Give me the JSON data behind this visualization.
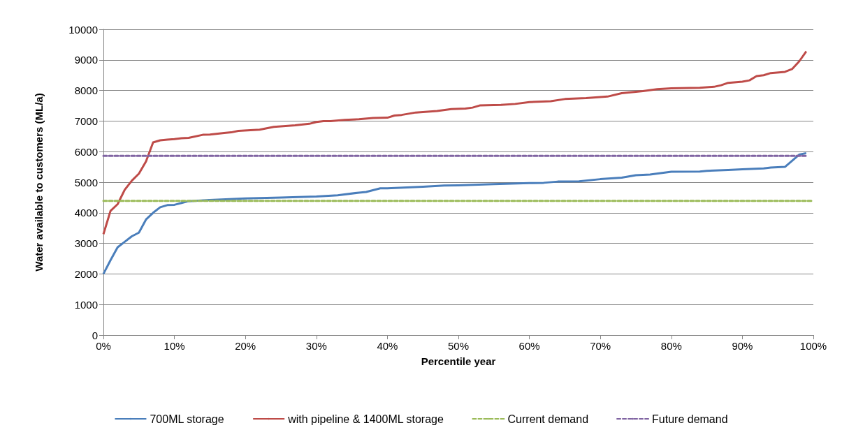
{
  "chart_data": {
    "type": "line",
    "xlabel": "Percentile year",
    "ylabel": "Water available to customers (ML/a)",
    "xlim": [
      0,
      100
    ],
    "xticks": [
      {
        "value": 0,
        "label": "0%"
      },
      {
        "value": 10,
        "label": "10%"
      },
      {
        "value": 20,
        "label": "20%"
      },
      {
        "value": 30,
        "label": "30%"
      },
      {
        "value": 40,
        "label": "40%"
      },
      {
        "value": 50,
        "label": "50%"
      },
      {
        "value": 60,
        "label": "60%"
      },
      {
        "value": 70,
        "label": "70%"
      },
      {
        "value": 80,
        "label": "80%"
      },
      {
        "value": 90,
        "label": "90%"
      },
      {
        "value": 100,
        "label": "100%"
      }
    ],
    "ylim": [
      0,
      10000
    ],
    "yticks": [
      0,
      1000,
      2000,
      3000,
      4000,
      5000,
      6000,
      7000,
      8000,
      9000,
      10000
    ],
    "grid": "y",
    "legend": "bottom",
    "marker": "none",
    "series": [
      {
        "name": "700ML storage",
        "color": "#4a7ebb",
        "line_style": "solid",
        "x": [
          0,
          1,
          2,
          3,
          4,
          5,
          6,
          7,
          8,
          9,
          10,
          11,
          12,
          15,
          20,
          25,
          30,
          33,
          36,
          37,
          39,
          40,
          45,
          48,
          50,
          55,
          60,
          62,
          64,
          67,
          70,
          73,
          75,
          77,
          80,
          84,
          85,
          88,
          90,
          93,
          94,
          96,
          98,
          99
        ],
        "values": [
          2000,
          2450,
          2870,
          3050,
          3230,
          3350,
          3780,
          4000,
          4180,
          4250,
          4260,
          4320,
          4380,
          4420,
          4470,
          4500,
          4530,
          4570,
          4660,
          4680,
          4800,
          4800,
          4850,
          4890,
          4900,
          4940,
          4970,
          4980,
          5020,
          5030,
          5100,
          5150,
          5230,
          5250,
          5340,
          5350,
          5370,
          5400,
          5420,
          5450,
          5480,
          5500,
          5900,
          5950
        ]
      },
      {
        "name": "with pipeline & 1400ML storage",
        "color": "#be4b48",
        "line_style": "solid",
        "x": [
          0,
          1,
          2,
          3,
          4,
          5,
          6,
          7,
          8,
          9,
          10,
          11,
          12,
          14,
          15,
          17,
          18,
          19,
          22,
          24,
          27,
          29,
          30,
          31,
          32,
          34,
          36,
          38,
          40,
          41,
          42,
          44,
          46,
          47,
          49,
          51,
          52,
          53,
          56,
          58,
          60,
          63,
          65,
          68,
          71,
          73,
          76,
          78,
          80,
          84,
          86,
          87,
          88,
          90,
          91,
          92,
          93,
          94,
          96,
          97,
          98,
          99
        ],
        "values": [
          3300,
          4060,
          4280,
          4750,
          5050,
          5280,
          5680,
          6300,
          6370,
          6390,
          6410,
          6440,
          6450,
          6550,
          6560,
          6610,
          6630,
          6680,
          6720,
          6810,
          6860,
          6910,
          6970,
          7000,
          7000,
          7040,
          7060,
          7100,
          7110,
          7180,
          7200,
          7280,
          7310,
          7330,
          7390,
          7410,
          7440,
          7510,
          7530,
          7560,
          7620,
          7650,
          7720,
          7750,
          7800,
          7910,
          7980,
          8040,
          8070,
          8090,
          8120,
          8170,
          8250,
          8290,
          8330,
          8470,
          8500,
          8570,
          8610,
          8700,
          8950,
          9280
        ]
      },
      {
        "name": "Current demand",
        "color": "#9bbb59",
        "line_style": "dashed",
        "x": [
          0,
          100
        ],
        "values": [
          4390,
          4390
        ]
      },
      {
        "name": "Future demand",
        "color": "#8064a2",
        "line_style": "dashed",
        "x": [
          0,
          99
        ],
        "values": [
          5860,
          5860
        ]
      }
    ]
  }
}
